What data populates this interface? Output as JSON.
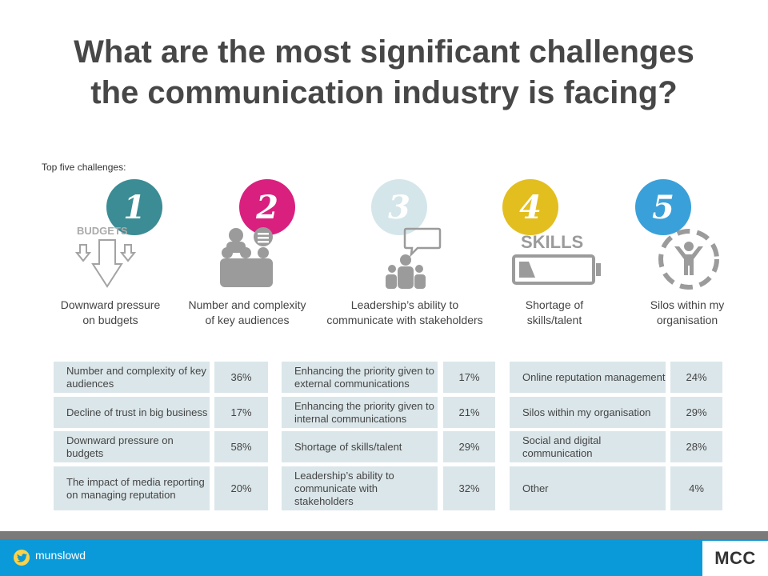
{
  "title": {
    "line1": "What are the most significant challenges",
    "line2": "the communication industry is facing?"
  },
  "subtitle": "Top five challenges:",
  "challenges": [
    {
      "number": "1",
      "color": "#3b8c94",
      "caption_line1": "Downward pressure",
      "caption_line2": "on budgets",
      "icon": "budget-down-arrows-icon",
      "icon_text": "BUDGETS"
    },
    {
      "number": "2",
      "color": "#d9207f",
      "caption_line1": "Number and complexity",
      "caption_line2": "of key audiences",
      "icon": "audience-group-icon"
    },
    {
      "number": "3",
      "color": "#d5e6ea",
      "caption_line1": "Leadership’s ability to",
      "caption_line2": "communicate with stakeholders",
      "icon": "leader-speech-icon"
    },
    {
      "number": "4",
      "color": "#e2be1f",
      "caption_line1": "Shortage of",
      "caption_line2": "skills/talent",
      "icon": "low-battery-icon",
      "icon_text": "SKILLS"
    },
    {
      "number": "5",
      "color": "#3aa0d9",
      "caption_line1": "Silos within my",
      "caption_line2": "organisation",
      "icon": "isolated-person-icon"
    }
  ],
  "tables": [
    {
      "rows": [
        {
          "label": "Number and complexity of key audiences",
          "pct": "36%"
        },
        {
          "label": "Decline of trust in big business",
          "pct": "17%"
        },
        {
          "label": "Downward pressure on budgets",
          "pct": "58%"
        },
        {
          "label": "The impact of media reporting on managing reputation",
          "pct": "20%"
        }
      ]
    },
    {
      "rows": [
        {
          "label": "Enhancing the priority given to external communications",
          "pct": "17%"
        },
        {
          "label": "Enhancing the priority given to internal communications",
          "pct": "21%"
        },
        {
          "label": "Shortage of skills/talent",
          "pct": "29%"
        },
        {
          "label": "Leadership’s ability to communicate with stakeholders",
          "pct": "32%"
        }
      ]
    },
    {
      "rows": [
        {
          "label": "Online reputation management",
          "pct": "24%"
        },
        {
          "label": "Silos within my organisation",
          "pct": "29%"
        },
        {
          "label": "Social and digital communication",
          "pct": "28%"
        },
        {
          "label": "Other",
          "pct": "4%"
        }
      ]
    }
  ],
  "footer": {
    "handle": "munslowd",
    "logo": "MCC",
    "twitter_icon": "twitter-bird-icon",
    "bar_color": "#0a9ad9"
  }
}
